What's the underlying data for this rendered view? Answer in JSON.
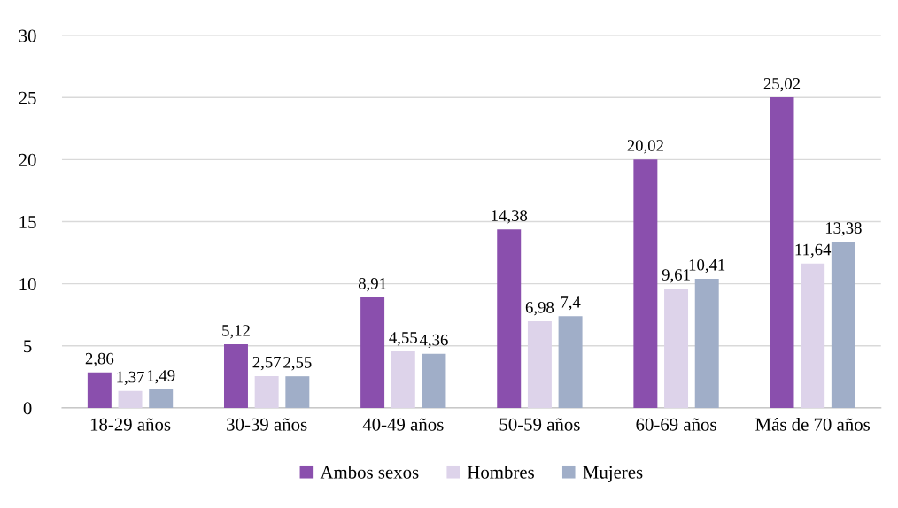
{
  "chart_data": {
    "type": "bar",
    "categories": [
      "18-29 años",
      "30-39 años",
      "40-49 años",
      "50-59 años",
      "60-69 años",
      "Más de 70 años"
    ],
    "series": [
      {
        "name": "Ambos sexos",
        "color": "#8a4fad",
        "values": [
          2.86,
          5.12,
          8.91,
          14.38,
          20.02,
          25.02
        ],
        "value_labels": [
          "2,86",
          "5,12",
          "8,91",
          "14,38",
          "20,02",
          "25,02"
        ]
      },
      {
        "name": "Hombres",
        "color": "#ddd3ea",
        "values": [
          1.37,
          2.57,
          4.55,
          6.98,
          9.61,
          11.64
        ],
        "value_labels": [
          "1,37",
          "2,57",
          "4,55",
          "6,98",
          "9,61",
          "11,64"
        ]
      },
      {
        "name": "Mujeres",
        "color": "#a0aec8",
        "values": [
          1.49,
          2.55,
          4.36,
          7.4,
          10.41,
          13.38
        ],
        "value_labels": [
          "1,49",
          "2,55",
          "4,36",
          "7,4",
          "10,41",
          "13,38"
        ]
      }
    ],
    "ylim": [
      0,
      30
    ],
    "yticks": [
      0,
      5,
      10,
      15,
      20,
      25,
      30
    ],
    "grid": "y",
    "legend": "bottom"
  }
}
